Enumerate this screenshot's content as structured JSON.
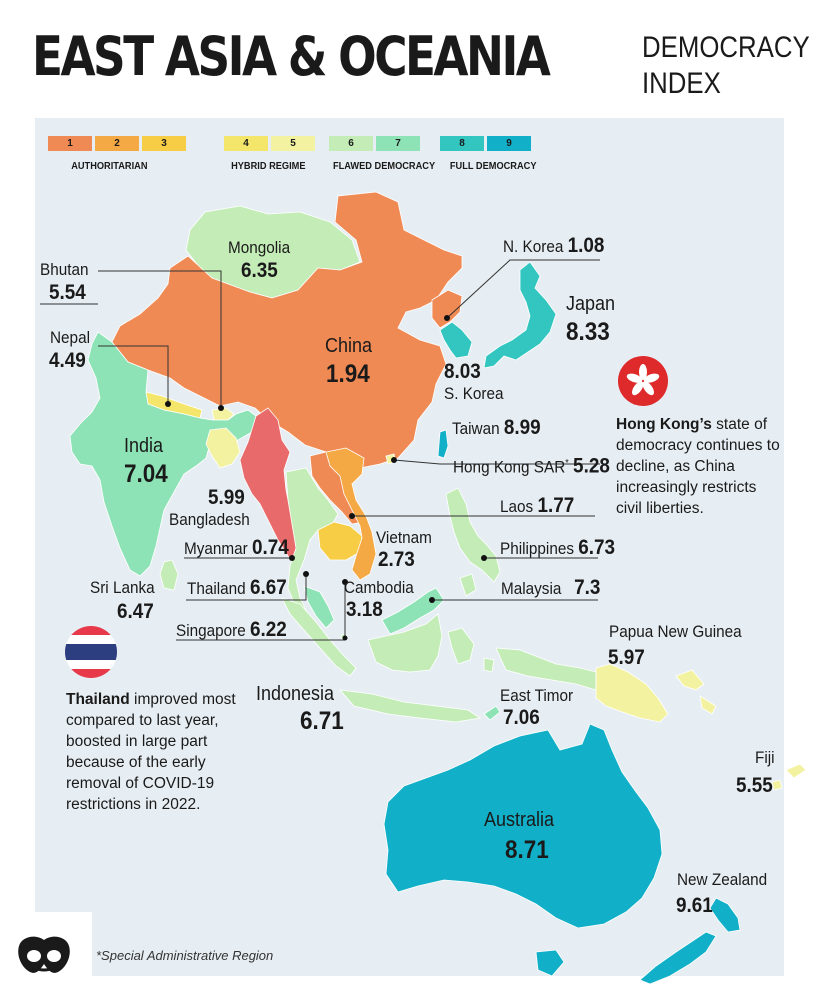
{
  "title": "EAST ASIA & OCEANIA",
  "subtitle": [
    "DEMOCRACY",
    "INDEX"
  ],
  "legend": {
    "steps": [
      {
        "label": "1",
        "color": "#f08a55"
      },
      {
        "label": "2",
        "color": "#f5a945"
      },
      {
        "label": "3",
        "color": "#f6cd45"
      },
      {
        "label": "4",
        "color": "#f3e66b"
      },
      {
        "label": "5",
        "color": "#f2f2a0"
      },
      {
        "label": "6",
        "color": "#c4ecb7"
      },
      {
        "label": "7",
        "color": "#8de3b5"
      },
      {
        "label": "8",
        "color": "#33c6c0"
      },
      {
        "label": "9",
        "color": "#12b0c8"
      }
    ],
    "categories": [
      "AUTHORITARIAN",
      "HYBRID REGIME",
      "FLAWED DEMOCRACY",
      "FULL DEMOCRACY"
    ]
  },
  "countries": {
    "mongolia": {
      "name": "Mongolia",
      "score": "6.35",
      "color": "#c4ecb7"
    },
    "china": {
      "name": "China",
      "score": "1.94",
      "color": "#f08a55"
    },
    "n_korea": {
      "name": "N. Korea",
      "score": "1.08",
      "color": "#f08a55"
    },
    "japan": {
      "name": "Japan",
      "score": "8.33",
      "color": "#33c6c0"
    },
    "s_korea": {
      "name": "S. Korea",
      "score": "8.03",
      "color": "#33c6c0"
    },
    "taiwan": {
      "name": "Taiwan",
      "score": "8.99",
      "color": "#12b0c8"
    },
    "hong_kong": {
      "name": "Hong Kong SAR",
      "mark": "*",
      "score": "5.28",
      "color": "#f2f2a0"
    },
    "bhutan": {
      "name": "Bhutan",
      "score": "5.54",
      "color": "#f2f2a0"
    },
    "nepal": {
      "name": "Nepal",
      "score": "4.49",
      "color": "#f3e66b"
    },
    "india": {
      "name": "India",
      "score": "7.04",
      "color": "#8de3b5"
    },
    "bangladesh": {
      "name": "Bangladesh",
      "score": "5.99",
      "color": "#f2f2a0"
    },
    "myanmar": {
      "name": "Myanmar",
      "score": "0.74",
      "color": "#e96a6a"
    },
    "thailand": {
      "name": "Thailand",
      "score": "6.67",
      "color": "#c4ecb7"
    },
    "laos": {
      "name": "Laos",
      "score": "1.77",
      "color": "#f08a55"
    },
    "vietnam": {
      "name": "Vietnam",
      "score": "2.73",
      "color": "#f5a945"
    },
    "cambodia": {
      "name": "Cambodia",
      "score": "3.18",
      "color": "#f6cd45"
    },
    "sri_lanka": {
      "name": "Sri Lanka",
      "score": "6.47",
      "color": "#c4ecb7"
    },
    "singapore": {
      "name": "Singapore",
      "score": "6.22",
      "color": "#c4ecb7"
    },
    "malaysia": {
      "name": "Malaysia",
      "score": "7.3",
      "color": "#8de3b5"
    },
    "philippines": {
      "name": "Philippines",
      "score": "6.73",
      "color": "#c4ecb7"
    },
    "indonesia": {
      "name": "Indonesia",
      "score": "6.71",
      "color": "#c4ecb7"
    },
    "east_timor": {
      "name": "East Timor",
      "score": "7.06",
      "color": "#8de3b5"
    },
    "png": {
      "name": "Papua New Guinea",
      "score": "5.97",
      "color": "#f2f2a0"
    },
    "fiji": {
      "name": "Fiji",
      "score": "5.55",
      "color": "#f2f2a0"
    },
    "australia": {
      "name": "Australia",
      "score": "8.71",
      "color": "#12b0c8"
    },
    "new_zealand": {
      "name": "New Zealand",
      "score": "9.61",
      "color": "#12b0c8"
    }
  },
  "notes": {
    "hong_kong": {
      "bold": "Hong Kong’s",
      "text": " state of democracy continues to decline, as China increasingly restricts civil liberties."
    },
    "thailand": {
      "bold": "Thailand",
      "text": " improved most compared to last year, boosted in large part because of the early removal of COVID-19 restrictions in 2022."
    }
  },
  "footnote": "*Special Administrative Region",
  "icons": [
    "hong-kong-flag-icon",
    "thailand-flag-icon",
    "brand-logo-icon"
  ]
}
